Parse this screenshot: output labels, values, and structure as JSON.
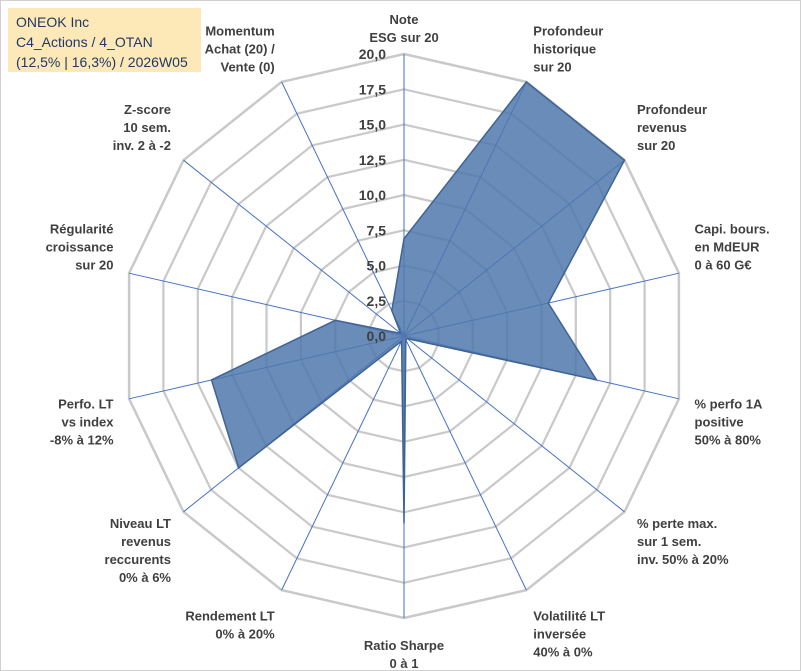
{
  "header": {
    "line1": "ONEOK Inc",
    "line2": "C4_Actions / 4_OTAN",
    "line3": "(12,5% | 16,3%) / 2026W05"
  },
  "chart_data": {
    "type": "radar",
    "title": "ONEOK Inc",
    "rlim": [
      0,
      20
    ],
    "rticks": [
      "0,0",
      "2,5",
      "5,0",
      "7,5",
      "10,0",
      "12,5",
      "15,0",
      "17,5",
      "20,0"
    ],
    "axes": [
      {
        "label": [
          "Note",
          "ESG sur 20"
        ],
        "value": 6.9
      },
      {
        "label": [
          "Profondeur",
          "historique",
          "sur 20"
        ],
        "value": 20.0
      },
      {
        "label": [
          "Profondeur",
          "revenus",
          "sur 20"
        ],
        "value": 20.0
      },
      {
        "label": [
          "Capi. bours.",
          "en MdEUR",
          "0 à 60 G€"
        ],
        "value": 10.5
      },
      {
        "label": [
          "% perfo 1A",
          "positive",
          "50% à 80%"
        ],
        "value": 14.0
      },
      {
        "label": [
          "% perte max.",
          "sur 1 sem.",
          "inv. 50% à 20%"
        ],
        "value": 0.3
      },
      {
        "label": [
          "Volatilité LT",
          "inversée",
          "40% à 0%"
        ],
        "value": 0.3
      },
      {
        "label": [
          "Ratio Sharpe",
          "0 à 1"
        ],
        "value": 13.3
      },
      {
        "label": [
          "Rendement LT",
          "0% à 20%"
        ],
        "value": 0.4
      },
      {
        "label": [
          "Niveau LT",
          "revenus",
          "reccurents",
          "0% à 6%"
        ],
        "value": 15.0
      },
      {
        "label": [
          "Perfo. LT",
          "vs index",
          "-8% à 12%"
        ],
        "value": 14.0
      },
      {
        "label": [
          "Régularité",
          "croissance",
          "sur 20"
        ],
        "value": 5.0
      },
      {
        "label": [
          "Z-score",
          "10 sem.",
          "inv. 2 à -2"
        ],
        "value": 0.3
      },
      {
        "label": [
          "Momentum",
          "Achat (20) /",
          "Vente (0)"
        ],
        "value": 2.0
      }
    ],
    "fill_color": "#4f78ad",
    "grid_color": "#c9c9c9",
    "spoke_color": "#4472c4"
  }
}
